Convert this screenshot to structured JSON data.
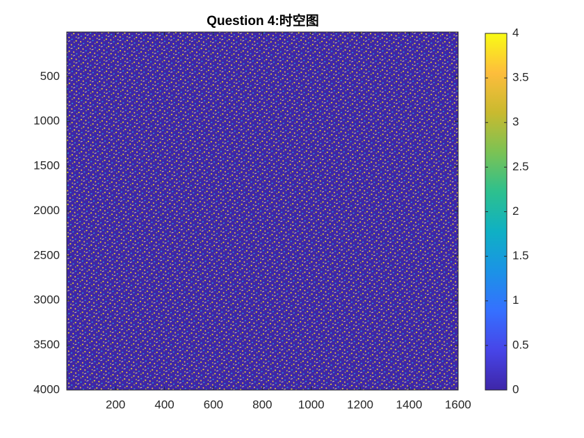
{
  "chart_data": {
    "type": "heatmap",
    "title": "Question 4:时空图",
    "xlim": [
      0.5,
      1600.5
    ],
    "xticks": [
      200,
      400,
      600,
      800,
      1000,
      1200,
      1400,
      1600
    ],
    "ylim": [
      0.5,
      4000.5
    ],
    "yticks": [
      500,
      1000,
      1500,
      2000,
      2500,
      3000,
      3500,
      4000
    ],
    "y_reversed": true,
    "clim": [
      0,
      4
    ],
    "colorbar_ticks": [
      0,
      0.5,
      1,
      1.5,
      2,
      2.5,
      3,
      3.5,
      4
    ],
    "colormap": [
      "#3e26a8",
      "#4745e8",
      "#3570ff",
      "#1b93e6",
      "#0fb0c4",
      "#2dc08e",
      "#7bc254",
      "#c9ba2f",
      "#fdbd3c",
      "#f9fb15"
    ]
  }
}
